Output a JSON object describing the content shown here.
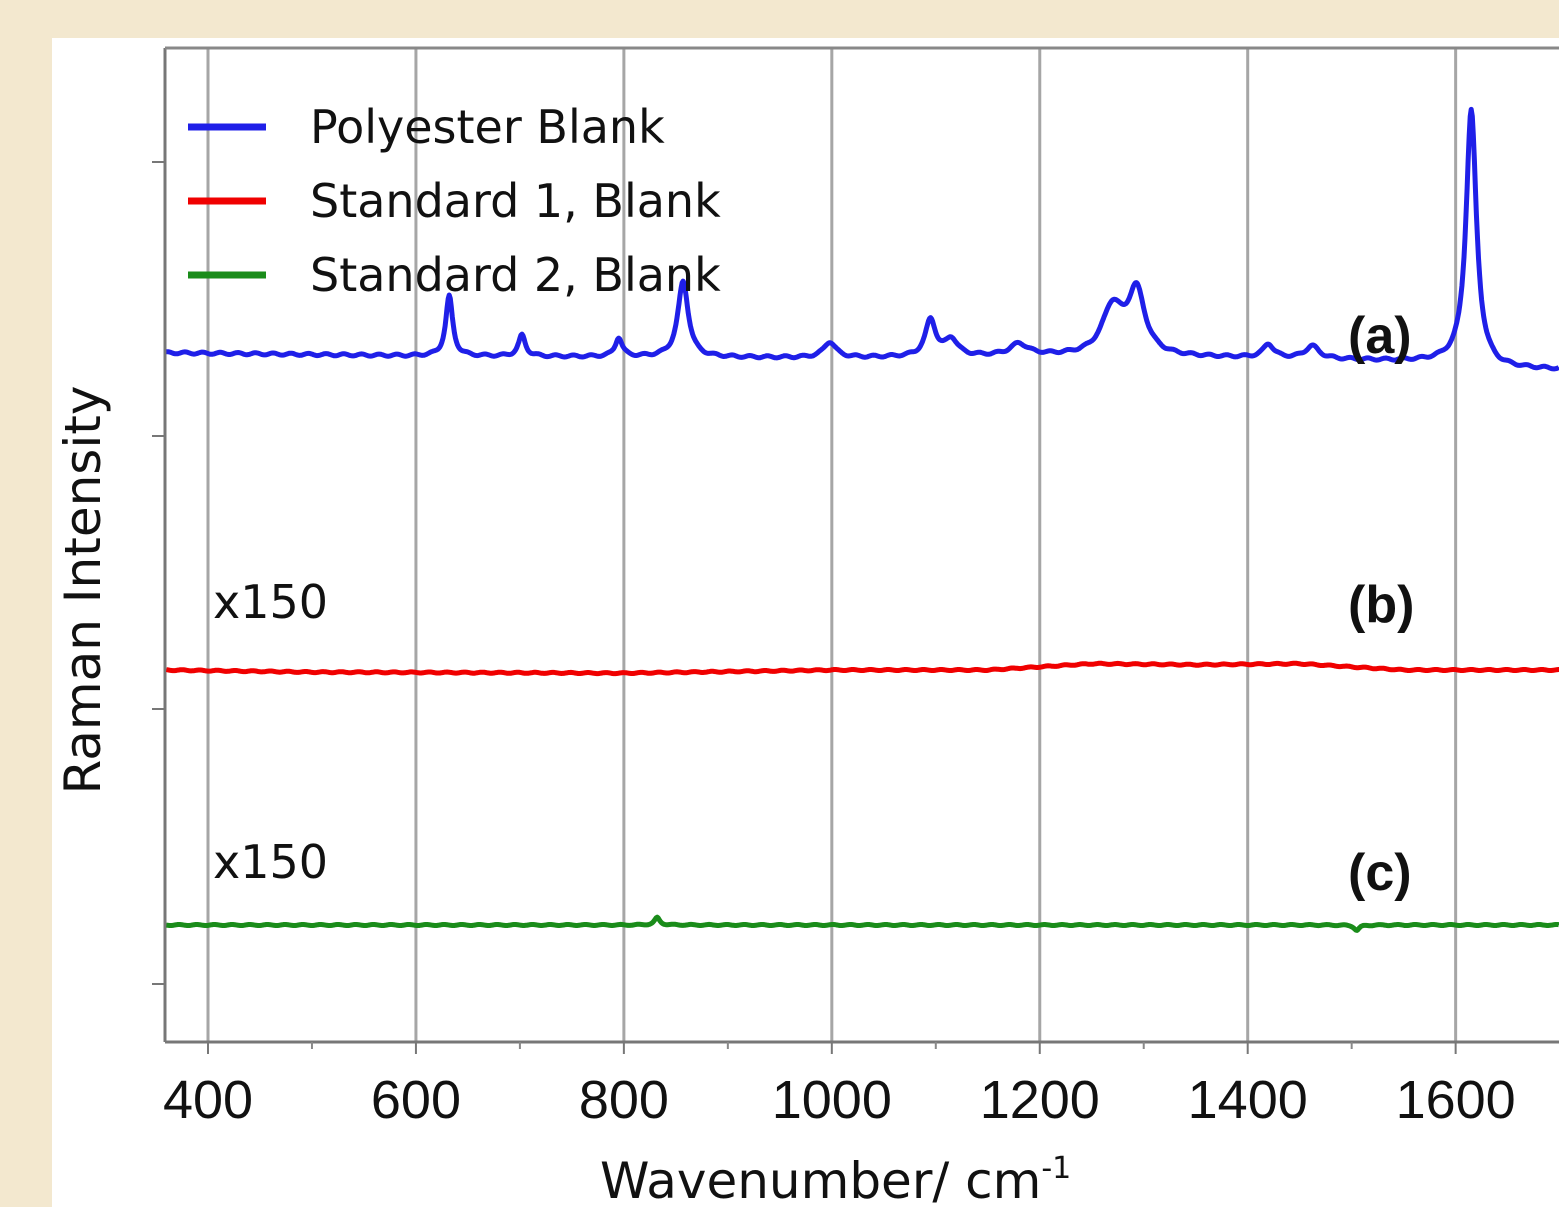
{
  "chart_data": {
    "type": "line",
    "xlabel": "Wavenumber/ cm",
    "xlabel_superscript": "-1",
    "ylabel": "Raman Intensity",
    "xlim": [
      360,
      1700
    ],
    "x_ticks": [
      400,
      600,
      800,
      1000,
      1200,
      1400,
      1600
    ],
    "x_tick_labels": [
      "400",
      "600",
      "800",
      "1000",
      "1200",
      "1400",
      "1600"
    ],
    "x_minor_ticks": [
      500,
      700,
      900,
      1100,
      1300,
      1500
    ],
    "grid": "vertical",
    "legend_position": "top-left",
    "series": [
      {
        "name": "Polyester Blank",
        "color": "#1f1fe8",
        "panel": "(a)",
        "scale_label": "",
        "baseline": [
          [
            360,
            0.45
          ],
          [
            600,
            0.42
          ],
          [
            800,
            0.41
          ],
          [
            1000,
            0.4
          ],
          [
            1200,
            0.42
          ],
          [
            1400,
            0.4
          ],
          [
            1500,
            0.38
          ],
          [
            1590,
            0.36
          ],
          [
            1640,
            0.3
          ],
          [
            1700,
            0.29
          ]
        ],
        "peaks": [
          {
            "x": 632,
            "height": 0.57,
            "width": 4
          },
          {
            "x": 702,
            "height": 0.2,
            "width": 4
          },
          {
            "x": 795,
            "height": 0.18,
            "width": 4
          },
          {
            "x": 857,
            "height": 0.72,
            "width": 6
          },
          {
            "x": 998,
            "height": 0.15,
            "width": 7
          },
          {
            "x": 1095,
            "height": 0.35,
            "width": 6
          },
          {
            "x": 1115,
            "height": 0.16,
            "width": 7
          },
          {
            "x": 1180,
            "height": 0.11,
            "width": 10
          },
          {
            "x": 1270,
            "height": 0.45,
            "width": 12
          },
          {
            "x": 1293,
            "height": 0.6,
            "width": 10
          },
          {
            "x": 1420,
            "height": 0.13,
            "width": 6
          },
          {
            "x": 1462,
            "height": 0.12,
            "width": 8
          },
          {
            "x": 1615,
            "height": 2.43,
            "width": 6
          }
        ]
      },
      {
        "name": "Standard 1, Blank",
        "color": "#f00000",
        "panel": "(b)",
        "scale_label": "x150",
        "baseline": [
          [
            360,
            0.0
          ],
          [
            500,
            -0.02
          ],
          [
            800,
            -0.03
          ],
          [
            1000,
            0.0
          ],
          [
            1150,
            0.0
          ],
          [
            1250,
            0.06
          ],
          [
            1350,
            0.05
          ],
          [
            1450,
            0.06
          ],
          [
            1550,
            0.0
          ],
          [
            1700,
            0.0
          ]
        ],
        "peaks": []
      },
      {
        "name": "Standard 2, Blank",
        "color": "#1a8c1a",
        "panel": "(c)",
        "scale_label": "x150",
        "baseline": [
          [
            360,
            0.0
          ],
          [
            1700,
            0.0
          ]
        ],
        "peaks": [
          {
            "x": 832,
            "height": 0.07,
            "width": 3
          },
          {
            "x": 1505,
            "height": -0.05,
            "width": 3
          }
        ]
      }
    ]
  }
}
